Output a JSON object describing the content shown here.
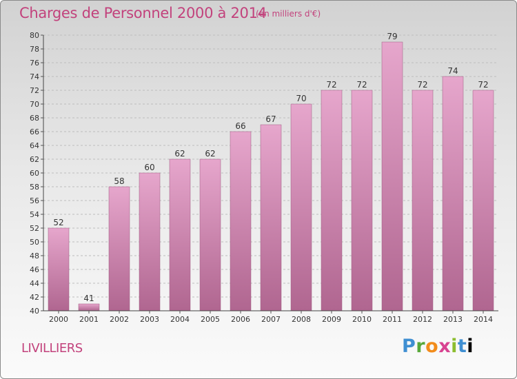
{
  "header": {
    "title": "Charges de Personnel 2000 à 2014",
    "subtitle": "(en milliers d'€)"
  },
  "footer": {
    "location": "LIVILLIERS",
    "logo_letters": [
      "P",
      "r",
      "o",
      "x",
      "i",
      "t",
      "i"
    ]
  },
  "colors": {
    "title": "#c2427c",
    "bar_top": "#e6a6cc",
    "bar_bottom": "#b06690",
    "bar_edge": "#9d5a80"
  },
  "chart_data": {
    "type": "bar",
    "categories": [
      "2000",
      "2001",
      "2002",
      "2003",
      "2004",
      "2005",
      "2006",
      "2007",
      "2008",
      "2009",
      "2010",
      "2011",
      "2012",
      "2013",
      "2014"
    ],
    "values": [
      52,
      41,
      58,
      60,
      62,
      62,
      66,
      67,
      70,
      72,
      72,
      79,
      72,
      74,
      72
    ],
    "ylim": [
      40,
      80
    ],
    "yticks": [
      40,
      42,
      44,
      46,
      48,
      50,
      52,
      54,
      56,
      58,
      60,
      62,
      64,
      66,
      68,
      70,
      72,
      74,
      76,
      78,
      80
    ],
    "grid": true,
    "data_labels": true,
    "legend": "none"
  }
}
